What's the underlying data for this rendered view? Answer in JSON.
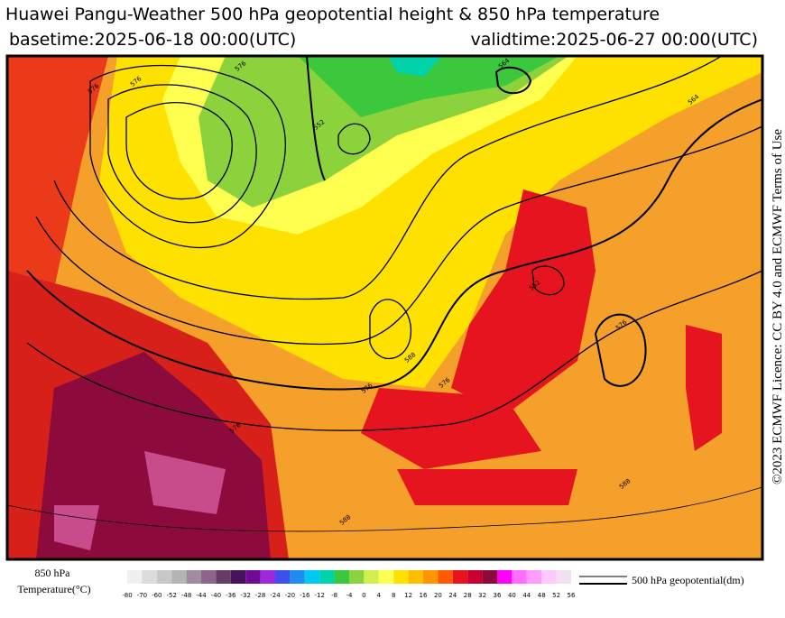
{
  "header": {
    "title": "Huawei Pangu-Weather 500 hPa geopotential height & 850 hPa temperature",
    "basetime": "basetime:2025-06-18 00:00(UTC)",
    "validtime": "validtime:2025-06-27 00:00(UTC)"
  },
  "licence": "©2023 ECMWF Licence: CC BY 4.0 and ECMWF Terms of Use",
  "contour_labels": [
    576,
    564,
    552,
    576,
    588,
    588,
    576,
    576,
    576,
    552,
    564,
    576,
    576,
    588
  ],
  "legend": {
    "temperature_title": "850 hPa",
    "temperature_unit": "Temperature(°C)",
    "geopotential_label": "500 hPa geopotential(dm)",
    "ticks": [
      -80,
      -70,
      -60,
      -52,
      -48,
      -44,
      -40,
      -36,
      -32,
      -28,
      -24,
      -20,
      -16,
      -12,
      -8,
      -4,
      0,
      4,
      8,
      12,
      16,
      20,
      24,
      28,
      32,
      36,
      40,
      44,
      48,
      52,
      56
    ],
    "colors": [
      "#f0f0f0",
      "#dcdcdc",
      "#c8c8c8",
      "#b4b4b4",
      "#a08ca0",
      "#8c648c",
      "#643c64",
      "#46145a",
      "#6e0a96",
      "#a028dc",
      "#3c50f0",
      "#1e8cf0",
      "#00c8f0",
      "#00d2aa",
      "#3cc83c",
      "#8cd23c",
      "#d2ee50",
      "#ffff50",
      "#ffe100",
      "#ffbe00",
      "#ff9600",
      "#ff5a00",
      "#e6141e",
      "#c80032",
      "#8c0a3c",
      "#ff00ff",
      "#ff6eff",
      "#ff9cff",
      "#ffc8ff",
      "#f0e0f0"
    ]
  }
}
